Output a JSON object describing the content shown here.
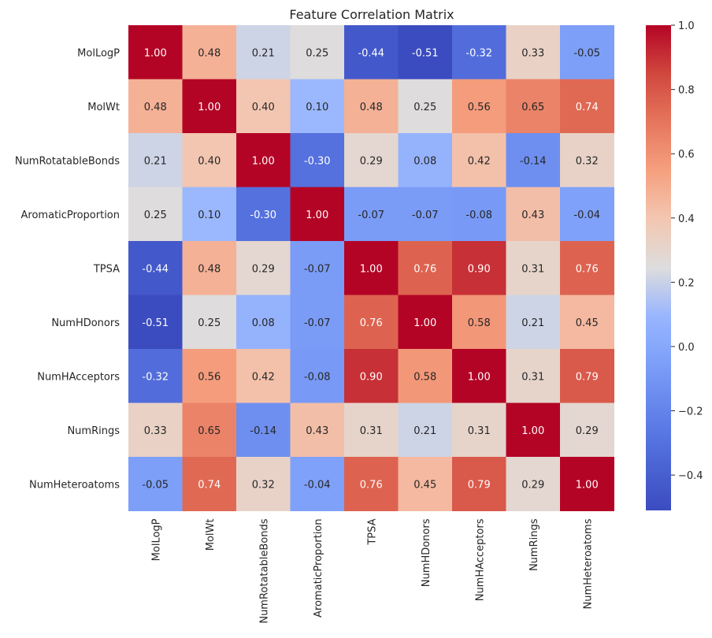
{
  "chart_data": {
    "type": "heatmap",
    "title": "Feature Correlation Matrix",
    "xlabel": "",
    "ylabel": "",
    "row_labels": [
      "MolLogP",
      "MolWt",
      "NumRotatableBonds",
      "AromaticProportion",
      "TPSA",
      "NumHDonors",
      "NumHAcceptors",
      "NumRings",
      "NumHeteroatoms"
    ],
    "col_labels": [
      "MolLogP",
      "MolWt",
      "NumRotatableBonds",
      "AromaticProportion",
      "TPSA",
      "NumHDonors",
      "NumHAcceptors",
      "NumRings",
      "NumHeteroatoms"
    ],
    "values": [
      [
        1.0,
        0.48,
        0.21,
        0.25,
        -0.44,
        -0.51,
        -0.32,
        0.33,
        -0.05
      ],
      [
        0.48,
        1.0,
        0.4,
        0.1,
        0.48,
        0.25,
        0.56,
        0.65,
        0.74
      ],
      [
        0.21,
        0.4,
        1.0,
        -0.3,
        0.29,
        0.08,
        0.42,
        -0.14,
        0.32
      ],
      [
        0.25,
        0.1,
        -0.3,
        1.0,
        -0.07,
        -0.07,
        -0.08,
        0.43,
        -0.04
      ],
      [
        -0.44,
        0.48,
        0.29,
        -0.07,
        1.0,
        0.76,
        0.9,
        0.31,
        0.76
      ],
      [
        -0.51,
        0.25,
        0.08,
        -0.07,
        0.76,
        1.0,
        0.58,
        0.21,
        0.45
      ],
      [
        -0.32,
        0.56,
        0.42,
        -0.08,
        0.9,
        0.58,
        1.0,
        0.31,
        0.79
      ],
      [
        0.33,
        0.65,
        -0.14,
        0.43,
        0.31,
        0.21,
        0.31,
        1.0,
        0.29
      ],
      [
        -0.05,
        0.74,
        0.32,
        -0.04,
        0.76,
        0.45,
        0.79,
        0.29,
        1.0
      ]
    ],
    "value_format": "2 decimals",
    "colormap": "coolwarm",
    "colorbar": {
      "range": [
        -0.51,
        1.0
      ],
      "ticks": [
        -0.4,
        -0.2,
        0.0,
        0.2,
        0.4,
        0.6,
        0.8,
        1.0
      ],
      "tick_labels": [
        "−0.4",
        "−0.2",
        "0.0",
        "0.2",
        "0.4",
        "0.6",
        "0.8",
        "1.0"
      ]
    },
    "grid": false,
    "legend": "colorbar-right"
  }
}
